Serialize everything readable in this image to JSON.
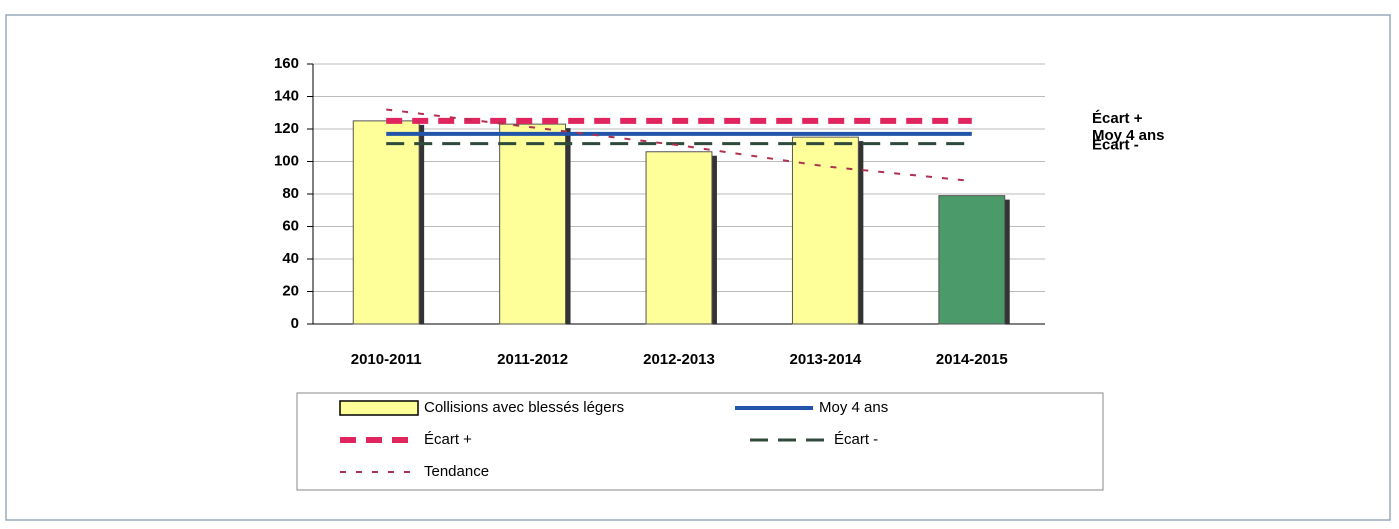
{
  "chart_data": {
    "type": "bar",
    "categories": [
      "2010-2011",
      "2011-2012",
      "2012-2013",
      "2013-2014",
      "2014-2015"
    ],
    "ylim": [
      0,
      160
    ],
    "yticks": [
      0,
      20,
      40,
      60,
      80,
      100,
      120,
      140,
      160
    ],
    "grid": true,
    "series": [
      {
        "name": "Collisions avec blessés légers",
        "type": "bar",
        "color": "#ffff99",
        "colors": [
          "#ffff99",
          "#ffff99",
          "#ffff99",
          "#ffff99",
          "#4a9a6a"
        ],
        "values": [
          125,
          123,
          106,
          115,
          79
        ]
      },
      {
        "name": "Moy 4 ans",
        "type": "line",
        "color": "#2255aa",
        "dash": "none",
        "width": 4,
        "values": [
          117,
          117,
          117,
          117,
          117
        ]
      },
      {
        "name": "Écart +",
        "type": "line",
        "color": "#e0245e",
        "dash": "16 10",
        "width": 6,
        "values": [
          125,
          125,
          125,
          125,
          125
        ]
      },
      {
        "name": "Écart -",
        "type": "line",
        "color": "#2f4a3a",
        "dash": "18 10",
        "width": 3,
        "values": [
          111,
          111,
          111,
          111,
          111
        ]
      },
      {
        "name": "Tendance",
        "type": "line",
        "color": "#b03050",
        "dash": "6 10",
        "width": 2,
        "values": [
          132,
          121,
          110,
          97,
          88
        ]
      }
    ]
  }
}
